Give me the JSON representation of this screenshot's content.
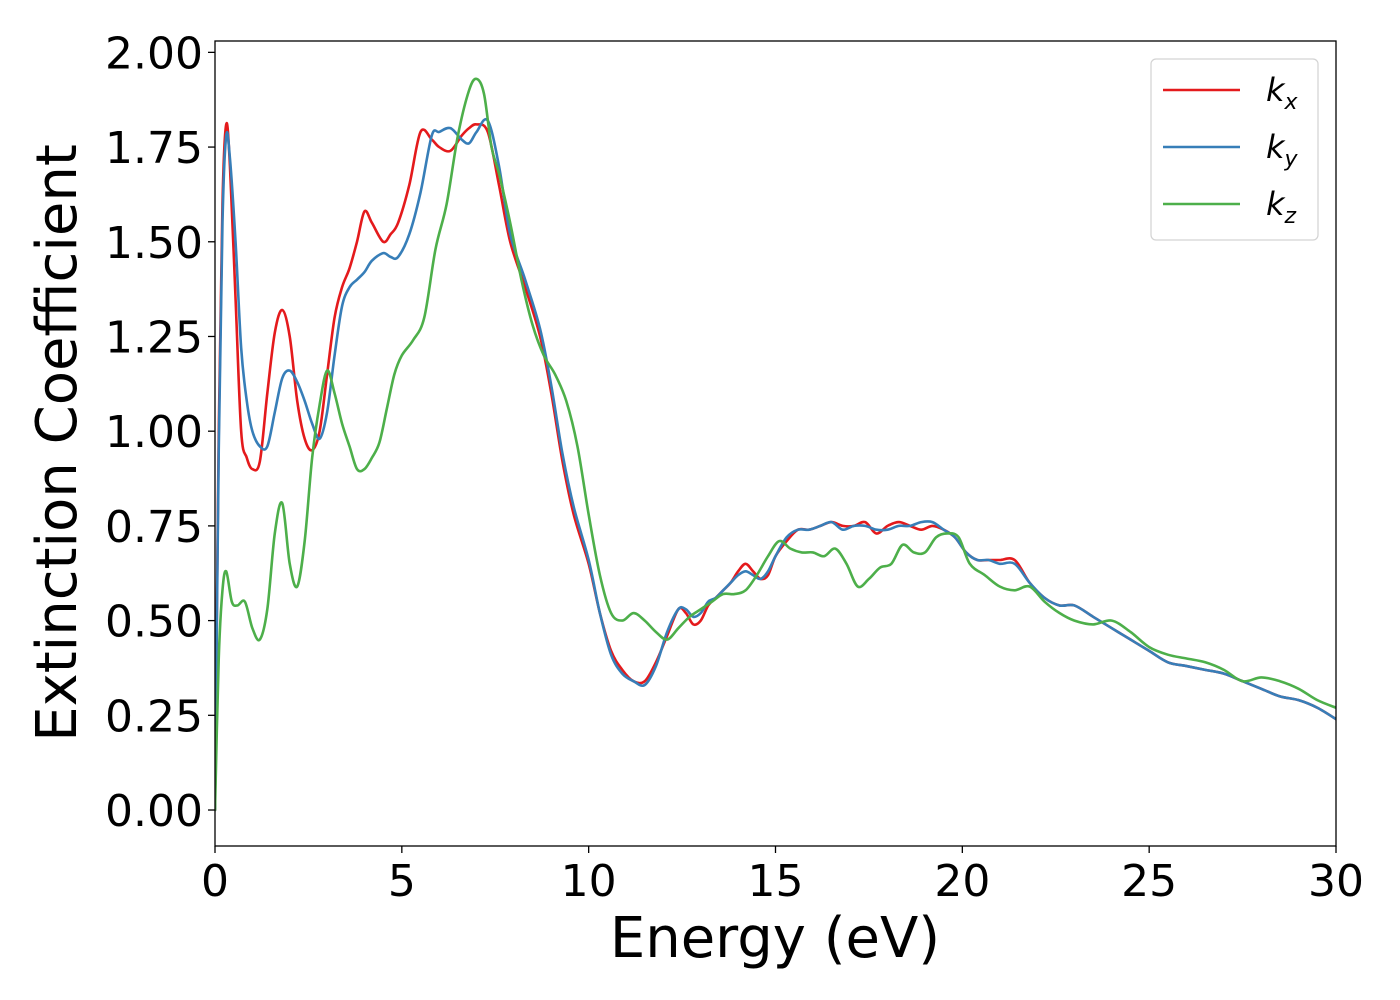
{
  "chart_data": {
    "type": "line",
    "title": "",
    "xlabel": "Energy (eV)",
    "ylabel": "Extinction Coefficient",
    "xlim": [
      0,
      30
    ],
    "ylim": [
      -0.095,
      2.03
    ],
    "xticks": [
      0,
      5,
      10,
      15,
      20,
      25,
      30
    ],
    "xtick_labels": [
      "0",
      "5",
      "10",
      "15",
      "20",
      "25",
      "30"
    ],
    "yticks": [
      0.0,
      0.25,
      0.5,
      0.75,
      1.0,
      1.25,
      1.5,
      1.75,
      2.0
    ],
    "ytick_labels": [
      "0.00",
      "0.25",
      "0.50",
      "0.75",
      "1.00",
      "1.25",
      "1.50",
      "1.75",
      "2.00"
    ],
    "grid": false,
    "legend_position": "top-right",
    "series": [
      {
        "name": "kx",
        "legend_main": "k",
        "legend_sub": "x",
        "color": "#e41a1c",
        "x": [
          0,
          0.1,
          0.2,
          0.3,
          0.4,
          0.55,
          0.7,
          0.85,
          1.0,
          1.2,
          1.4,
          1.6,
          1.8,
          2.0,
          2.2,
          2.4,
          2.6,
          2.8,
          3.0,
          3.2,
          3.4,
          3.6,
          3.8,
          4.0,
          4.2,
          4.5,
          4.7,
          4.9,
          5.2,
          5.5,
          5.8,
          6.0,
          6.3,
          6.6,
          6.8,
          7.0,
          7.3,
          7.6,
          7.9,
          8.3,
          8.7,
          9.0,
          9.3,
          9.6,
          10.0,
          10.3,
          10.6,
          10.9,
          11.2,
          11.5,
          11.8,
          12.1,
          12.4,
          12.6,
          12.8,
          13.0,
          13.2,
          13.4,
          13.6,
          13.8,
          14.0,
          14.2,
          14.4,
          14.6,
          14.8,
          15.0,
          15.3,
          15.6,
          15.9,
          16.2,
          16.5,
          16.8,
          17.1,
          17.4,
          17.7,
          18.0,
          18.3,
          18.6,
          18.9,
          19.2,
          19.5,
          19.8,
          20.1,
          20.4,
          20.7,
          21.0,
          21.4,
          21.8,
          22.2,
          22.6,
          23.0,
          23.5,
          24.0,
          24.5,
          25.0,
          25.5,
          26.0,
          26.5,
          27.0,
          27.5,
          28.0,
          28.5,
          29.0,
          29.5,
          30.0
        ],
        "values": [
          0.0,
          1.0,
          1.6,
          1.81,
          1.7,
          1.35,
          1.0,
          0.93,
          0.9,
          0.92,
          1.1,
          1.26,
          1.32,
          1.25,
          1.08,
          0.98,
          0.95,
          1.0,
          1.15,
          1.3,
          1.38,
          1.43,
          1.5,
          1.58,
          1.55,
          1.5,
          1.52,
          1.55,
          1.65,
          1.79,
          1.77,
          1.75,
          1.74,
          1.78,
          1.8,
          1.81,
          1.79,
          1.65,
          1.5,
          1.38,
          1.25,
          1.1,
          0.92,
          0.78,
          0.65,
          0.52,
          0.42,
          0.37,
          0.34,
          0.34,
          0.39,
          0.46,
          0.53,
          0.52,
          0.49,
          0.5,
          0.54,
          0.56,
          0.58,
          0.6,
          0.63,
          0.65,
          0.63,
          0.61,
          0.62,
          0.67,
          0.71,
          0.74,
          0.74,
          0.75,
          0.76,
          0.75,
          0.75,
          0.76,
          0.73,
          0.75,
          0.76,
          0.75,
          0.74,
          0.75,
          0.74,
          0.72,
          0.68,
          0.66,
          0.66,
          0.66,
          0.66,
          0.6,
          0.56,
          0.54,
          0.54,
          0.51,
          0.48,
          0.45,
          0.42,
          0.39,
          0.38,
          0.37,
          0.36,
          0.34,
          0.32,
          0.3,
          0.29,
          0.27,
          0.24
        ]
      },
      {
        "name": "ky",
        "legend_main": "k",
        "legend_sub": "y",
        "color": "#377eb8",
        "x": [
          0,
          0.1,
          0.2,
          0.3,
          0.4,
          0.55,
          0.7,
          0.85,
          1.0,
          1.2,
          1.4,
          1.6,
          1.8,
          2.0,
          2.2,
          2.4,
          2.6,
          2.8,
          3.0,
          3.2,
          3.4,
          3.6,
          3.8,
          4.0,
          4.2,
          4.5,
          4.7,
          4.9,
          5.2,
          5.5,
          5.8,
          6.0,
          6.3,
          6.6,
          6.8,
          7.0,
          7.3,
          7.6,
          7.9,
          8.3,
          8.7,
          9.0,
          9.3,
          9.6,
          10.0,
          10.3,
          10.6,
          10.9,
          11.2,
          11.5,
          11.8,
          12.1,
          12.4,
          12.6,
          12.8,
          13.0,
          13.2,
          13.4,
          13.6,
          13.8,
          14.0,
          14.2,
          14.4,
          14.6,
          14.8,
          15.0,
          15.3,
          15.6,
          15.9,
          16.2,
          16.5,
          16.8,
          17.1,
          17.4,
          17.7,
          18.0,
          18.3,
          18.6,
          18.9,
          19.2,
          19.5,
          19.8,
          20.1,
          20.4,
          20.7,
          21.0,
          21.4,
          21.8,
          22.2,
          22.6,
          23.0,
          23.5,
          24.0,
          24.5,
          25.0,
          25.5,
          26.0,
          26.5,
          27.0,
          27.5,
          28.0,
          28.5,
          29.0,
          29.5,
          30.0
        ],
        "values": [
          0.0,
          0.95,
          1.55,
          1.78,
          1.72,
          1.5,
          1.22,
          1.08,
          1.0,
          0.96,
          0.96,
          1.05,
          1.14,
          1.16,
          1.13,
          1.08,
          1.02,
          0.98,
          1.05,
          1.2,
          1.33,
          1.38,
          1.4,
          1.42,
          1.45,
          1.47,
          1.46,
          1.46,
          1.52,
          1.63,
          1.78,
          1.79,
          1.8,
          1.77,
          1.76,
          1.79,
          1.82,
          1.7,
          1.52,
          1.4,
          1.27,
          1.12,
          0.94,
          0.8,
          0.66,
          0.52,
          0.41,
          0.36,
          0.34,
          0.33,
          0.38,
          0.47,
          0.53,
          0.53,
          0.51,
          0.52,
          0.55,
          0.56,
          0.58,
          0.6,
          0.62,
          0.63,
          0.62,
          0.61,
          0.63,
          0.67,
          0.72,
          0.74,
          0.74,
          0.75,
          0.76,
          0.74,
          0.75,
          0.75,
          0.74,
          0.74,
          0.75,
          0.75,
          0.76,
          0.76,
          0.74,
          0.72,
          0.68,
          0.66,
          0.66,
          0.65,
          0.65,
          0.6,
          0.56,
          0.54,
          0.54,
          0.51,
          0.48,
          0.45,
          0.42,
          0.39,
          0.38,
          0.37,
          0.36,
          0.34,
          0.32,
          0.3,
          0.29,
          0.27,
          0.24
        ]
      },
      {
        "name": "kz",
        "legend_main": "k",
        "legend_sub": "z",
        "color": "#4daf4a",
        "x": [
          0,
          0.1,
          0.2,
          0.3,
          0.45,
          0.6,
          0.8,
          1.0,
          1.2,
          1.4,
          1.6,
          1.8,
          2.0,
          2.2,
          2.4,
          2.6,
          2.8,
          3.0,
          3.2,
          3.4,
          3.6,
          3.8,
          4.0,
          4.2,
          4.4,
          4.6,
          4.8,
          5.0,
          5.3,
          5.6,
          5.9,
          6.2,
          6.5,
          6.8,
          7.0,
          7.2,
          7.4,
          7.6,
          7.9,
          8.2,
          8.5,
          8.8,
          9.1,
          9.4,
          9.7,
          10.0,
          10.3,
          10.6,
          10.9,
          11.2,
          11.5,
          11.8,
          12.1,
          12.4,
          12.7,
          13.0,
          13.3,
          13.6,
          13.9,
          14.2,
          14.5,
          14.8,
          15.1,
          15.4,
          15.7,
          16.0,
          16.3,
          16.6,
          16.9,
          17.2,
          17.5,
          17.8,
          18.1,
          18.4,
          18.7,
          19.0,
          19.3,
          19.6,
          19.9,
          20.2,
          20.6,
          21.0,
          21.4,
          21.8,
          22.2,
          22.6,
          23.0,
          23.5,
          24.0,
          24.5,
          25.0,
          25.5,
          26.0,
          26.5,
          27.0,
          27.5,
          28.0,
          28.5,
          29.0,
          29.5,
          30.0
        ],
        "values": [
          0.0,
          0.4,
          0.58,
          0.63,
          0.55,
          0.54,
          0.55,
          0.48,
          0.45,
          0.53,
          0.73,
          0.81,
          0.65,
          0.59,
          0.71,
          0.93,
          1.07,
          1.16,
          1.1,
          1.02,
          0.96,
          0.9,
          0.9,
          0.93,
          0.97,
          1.06,
          1.15,
          1.2,
          1.24,
          1.3,
          1.48,
          1.6,
          1.78,
          1.9,
          1.93,
          1.89,
          1.75,
          1.68,
          1.55,
          1.4,
          1.28,
          1.2,
          1.15,
          1.08,
          0.96,
          0.78,
          0.62,
          0.52,
          0.5,
          0.52,
          0.5,
          0.47,
          0.45,
          0.48,
          0.51,
          0.53,
          0.55,
          0.57,
          0.57,
          0.58,
          0.62,
          0.67,
          0.71,
          0.69,
          0.68,
          0.68,
          0.67,
          0.69,
          0.65,
          0.59,
          0.61,
          0.64,
          0.65,
          0.7,
          0.68,
          0.68,
          0.72,
          0.73,
          0.72,
          0.65,
          0.62,
          0.59,
          0.58,
          0.59,
          0.55,
          0.52,
          0.5,
          0.49,
          0.5,
          0.47,
          0.43,
          0.41,
          0.4,
          0.39,
          0.37,
          0.34,
          0.35,
          0.34,
          0.32,
          0.29,
          0.27
        ]
      }
    ]
  }
}
